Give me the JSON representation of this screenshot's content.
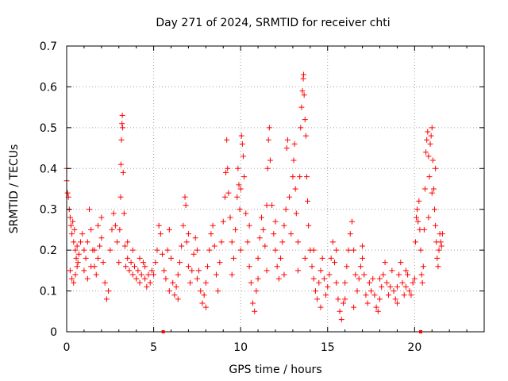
{
  "chart_data": {
    "type": "scatter",
    "title": "Day 271 of 2024, SRMTID for receiver chti",
    "xlabel": "GPS time / hours",
    "ylabel": "SRMTID / TECUs",
    "xlim": [
      0,
      24
    ],
    "ylim": [
      0,
      0.7
    ],
    "x_ticks": [
      0,
      5,
      10,
      15,
      20
    ],
    "x_tick_labels": [
      "0",
      "5",
      "10",
      "15",
      "20"
    ],
    "y_ticks": [
      0,
      0.1,
      0.2,
      0.3,
      0.4,
      0.5,
      0.6,
      0.7
    ],
    "y_tick_labels": [
      "0",
      "0.1",
      "0.2",
      "0.3",
      "0.4",
      "0.5",
      "0.6",
      "0.7"
    ],
    "grid": true,
    "marker": "+",
    "color": "#ff0000",
    "axis_markers_x": [
      5.55,
      20.35
    ],
    "series": [
      {
        "name": "SRMTID",
        "points": [
          [
            0.0,
            0.37
          ],
          [
            0.0,
            0.4
          ],
          [
            0.05,
            0.34
          ],
          [
            0.1,
            0.33
          ],
          [
            0.15,
            0.3
          ],
          [
            0.2,
            0.28
          ],
          [
            0.25,
            0.26
          ],
          [
            0.3,
            0.24
          ],
          [
            0.35,
            0.27
          ],
          [
            0.4,
            0.22
          ],
          [
            0.45,
            0.25
          ],
          [
            0.5,
            0.2
          ],
          [
            0.55,
            0.18
          ],
          [
            0.6,
            0.21
          ],
          [
            0.65,
            0.17
          ],
          [
            0.2,
            0.15
          ],
          [
            0.3,
            0.13
          ],
          [
            0.4,
            0.12
          ],
          [
            0.5,
            0.14
          ],
          [
            0.6,
            0.16
          ],
          [
            0.7,
            0.19
          ],
          [
            0.8,
            0.22
          ],
          [
            0.9,
            0.24
          ],
          [
            1.0,
            0.2
          ],
          [
            1.1,
            0.18
          ],
          [
            1.2,
            0.22
          ],
          [
            1.3,
            0.3
          ],
          [
            1.4,
            0.25
          ],
          [
            1.5,
            0.2
          ],
          [
            1.6,
            0.16
          ],
          [
            1.7,
            0.14
          ],
          [
            1.8,
            0.18
          ],
          [
            1.9,
            0.21
          ],
          [
            2.0,
            0.23
          ],
          [
            2.1,
            0.17
          ],
          [
            2.2,
            0.12
          ],
          [
            2.3,
            0.08
          ],
          [
            2.4,
            0.1
          ],
          [
            2.5,
            0.2
          ],
          [
            2.6,
            0.25
          ],
          [
            2.7,
            0.29
          ],
          [
            2.8,
            0.26
          ],
          [
            2.9,
            0.22
          ],
          [
            1.0,
            0.15
          ],
          [
            1.2,
            0.13
          ],
          [
            1.4,
            0.16
          ],
          [
            1.6,
            0.2
          ],
          [
            1.8,
            0.26
          ],
          [
            2.0,
            0.28
          ],
          [
            3.0,
            0.17
          ],
          [
            3.05,
            0.25
          ],
          [
            3.1,
            0.33
          ],
          [
            3.12,
            0.41
          ],
          [
            3.15,
            0.47
          ],
          [
            3.18,
            0.51
          ],
          [
            3.2,
            0.53
          ],
          [
            3.22,
            0.5
          ],
          [
            3.25,
            0.39
          ],
          [
            3.3,
            0.29
          ],
          [
            3.35,
            0.21
          ],
          [
            3.4,
            0.16
          ],
          [
            3.5,
            0.18
          ],
          [
            3.6,
            0.15
          ],
          [
            3.7,
            0.17
          ],
          [
            3.8,
            0.14
          ],
          [
            3.9,
            0.16
          ],
          [
            4.0,
            0.13
          ],
          [
            4.1,
            0.15
          ],
          [
            4.2,
            0.12
          ],
          [
            4.3,
            0.14
          ],
          [
            4.4,
            0.17
          ],
          [
            4.5,
            0.13
          ],
          [
            4.6,
            0.11
          ],
          [
            4.7,
            0.14
          ],
          [
            4.8,
            0.12
          ],
          [
            4.9,
            0.15
          ],
          [
            5.0,
            0.14
          ],
          [
            4.5,
            0.16
          ],
          [
            4.2,
            0.18
          ],
          [
            3.8,
            0.2
          ],
          [
            3.5,
            0.22
          ],
          [
            5.1,
            0.17
          ],
          [
            5.2,
            0.2
          ],
          [
            5.3,
            0.26
          ],
          [
            5.4,
            0.24
          ],
          [
            5.5,
            0.19
          ],
          [
            5.6,
            0.15
          ],
          [
            5.7,
            0.13
          ],
          [
            5.8,
            0.2
          ],
          [
            5.9,
            0.25
          ],
          [
            6.0,
            0.18
          ],
          [
            6.1,
            0.12
          ],
          [
            6.2,
            0.09
          ],
          [
            6.3,
            0.11
          ],
          [
            6.4,
            0.14
          ],
          [
            6.5,
            0.17
          ],
          [
            6.6,
            0.21
          ],
          [
            6.7,
            0.26
          ],
          [
            6.8,
            0.33
          ],
          [
            6.85,
            0.31
          ],
          [
            6.9,
            0.22
          ],
          [
            7.0,
            0.16
          ],
          [
            7.1,
            0.12
          ],
          [
            7.2,
            0.15
          ],
          [
            7.3,
            0.19
          ],
          [
            7.4,
            0.23
          ],
          [
            7.5,
            0.2
          ],
          [
            7.6,
            0.15
          ],
          [
            7.7,
            0.1
          ],
          [
            7.8,
            0.07
          ],
          [
            7.9,
            0.09
          ],
          [
            8.0,
            0.12
          ],
          [
            8.1,
            0.16
          ],
          [
            8.2,
            0.2
          ],
          [
            8.3,
            0.24
          ],
          [
            8.4,
            0.26
          ],
          [
            8.5,
            0.21
          ],
          [
            8.6,
            0.14
          ],
          [
            8.7,
            0.1
          ],
          [
            8.8,
            0.17
          ],
          [
            8.9,
            0.22
          ],
          [
            5.9,
            0.1
          ],
          [
            6.4,
            0.08
          ],
          [
            7.0,
            0.24
          ],
          [
            7.5,
            0.13
          ],
          [
            8.0,
            0.06
          ],
          [
            9.0,
            0.27
          ],
          [
            9.1,
            0.33
          ],
          [
            9.15,
            0.39
          ],
          [
            9.2,
            0.47
          ],
          [
            9.25,
            0.4
          ],
          [
            9.3,
            0.34
          ],
          [
            9.4,
            0.28
          ],
          [
            9.5,
            0.22
          ],
          [
            9.6,
            0.18
          ],
          [
            9.7,
            0.25
          ],
          [
            9.8,
            0.33
          ],
          [
            9.85,
            0.4
          ],
          [
            9.9,
            0.36
          ],
          [
            9.95,
            0.3
          ],
          [
            10.0,
            0.35
          ],
          [
            10.05,
            0.48
          ],
          [
            10.1,
            0.46
          ],
          [
            10.15,
            0.43
          ],
          [
            10.2,
            0.38
          ],
          [
            10.3,
            0.29
          ],
          [
            10.4,
            0.22
          ],
          [
            10.5,
            0.16
          ],
          [
            10.6,
            0.12
          ],
          [
            10.7,
            0.07
          ],
          [
            10.8,
            0.05
          ],
          [
            10.9,
            0.1
          ],
          [
            11.0,
            0.18
          ],
          [
            11.1,
            0.23
          ],
          [
            11.2,
            0.28
          ],
          [
            11.3,
            0.25
          ],
          [
            11.4,
            0.21
          ],
          [
            11.5,
            0.31
          ],
          [
            11.55,
            0.4
          ],
          [
            11.6,
            0.47
          ],
          [
            11.65,
            0.5
          ],
          [
            11.7,
            0.42
          ],
          [
            11.8,
            0.31
          ],
          [
            11.9,
            0.24
          ],
          [
            12.0,
            0.2
          ],
          [
            12.1,
            0.16
          ],
          [
            12.2,
            0.13
          ],
          [
            12.3,
            0.18
          ],
          [
            12.4,
            0.22
          ],
          [
            12.5,
            0.26
          ],
          [
            12.6,
            0.3
          ],
          [
            12.65,
            0.45
          ],
          [
            12.7,
            0.47
          ],
          [
            12.8,
            0.33
          ],
          [
            12.9,
            0.24
          ],
          [
            9.5,
            0.14
          ],
          [
            10.0,
            0.2
          ],
          [
            10.5,
            0.26
          ],
          [
            11.0,
            0.13
          ],
          [
            11.5,
            0.15
          ],
          [
            12.0,
            0.27
          ],
          [
            12.5,
            0.14
          ],
          [
            13.0,
            0.38
          ],
          [
            13.05,
            0.42
          ],
          [
            13.1,
            0.46
          ],
          [
            13.15,
            0.35
          ],
          [
            13.2,
            0.29
          ],
          [
            13.3,
            0.22
          ],
          [
            13.4,
            0.38
          ],
          [
            13.45,
            0.5
          ],
          [
            13.5,
            0.55
          ],
          [
            13.55,
            0.59
          ],
          [
            13.6,
            0.62
          ],
          [
            13.62,
            0.63
          ],
          [
            13.65,
            0.58
          ],
          [
            13.7,
            0.52
          ],
          [
            13.75,
            0.48
          ],
          [
            13.8,
            0.38
          ],
          [
            13.85,
            0.32
          ],
          [
            13.9,
            0.26
          ],
          [
            14.0,
            0.2
          ],
          [
            14.1,
            0.16
          ],
          [
            14.2,
            0.13
          ],
          [
            14.3,
            0.1
          ],
          [
            14.4,
            0.08
          ],
          [
            14.5,
            0.12
          ],
          [
            14.6,
            0.15
          ],
          [
            14.7,
            0.18
          ],
          [
            14.8,
            0.13
          ],
          [
            14.9,
            0.09
          ],
          [
            13.3,
            0.15
          ],
          [
            13.7,
            0.18
          ],
          [
            14.2,
            0.2
          ],
          [
            14.6,
            0.06
          ],
          [
            15.0,
            0.11
          ],
          [
            15.1,
            0.14
          ],
          [
            15.2,
            0.18
          ],
          [
            15.3,
            0.22
          ],
          [
            15.4,
            0.17
          ],
          [
            15.5,
            0.12
          ],
          [
            15.6,
            0.08
          ],
          [
            15.7,
            0.05
          ],
          [
            15.8,
            0.03
          ],
          [
            15.9,
            0.07
          ],
          [
            16.0,
            0.12
          ],
          [
            16.1,
            0.16
          ],
          [
            16.2,
            0.2
          ],
          [
            16.3,
            0.24
          ],
          [
            16.4,
            0.27
          ],
          [
            16.5,
            0.2
          ],
          [
            16.6,
            0.14
          ],
          [
            16.7,
            0.1
          ],
          [
            16.8,
            0.13
          ],
          [
            16.9,
            0.16
          ],
          [
            17.0,
            0.21
          ],
          [
            17.1,
            0.14
          ],
          [
            17.2,
            0.09
          ],
          [
            17.3,
            0.07
          ],
          [
            17.4,
            0.12
          ],
          [
            17.5,
            0.1
          ],
          [
            17.6,
            0.13
          ],
          [
            17.7,
            0.09
          ],
          [
            17.8,
            0.06
          ],
          [
            17.9,
            0.05
          ],
          [
            18.0,
            0.08
          ],
          [
            18.1,
            0.11
          ],
          [
            18.2,
            0.14
          ],
          [
            18.3,
            0.17
          ],
          [
            18.4,
            0.12
          ],
          [
            18.5,
            0.09
          ],
          [
            18.6,
            0.11
          ],
          [
            18.7,
            0.15
          ],
          [
            18.8,
            0.1
          ],
          [
            18.9,
            0.08
          ],
          [
            19.0,
            0.11
          ],
          [
            19.1,
            0.14
          ],
          [
            19.2,
            0.17
          ],
          [
            19.3,
            0.12
          ],
          [
            19.4,
            0.09
          ],
          [
            19.5,
            0.11
          ],
          [
            19.6,
            0.14
          ],
          [
            19.7,
            0.1
          ],
          [
            19.8,
            0.09
          ],
          [
            19.9,
            0.12
          ],
          [
            15.5,
            0.2
          ],
          [
            16.0,
            0.08
          ],
          [
            16.5,
            0.06
          ],
          [
            17.0,
            0.18
          ],
          [
            18.0,
            0.13
          ],
          [
            19.0,
            0.07
          ],
          [
            19.5,
            0.15
          ],
          [
            20.0,
            0.13
          ],
          [
            20.05,
            0.22
          ],
          [
            20.1,
            0.28
          ],
          [
            20.15,
            0.3
          ],
          [
            20.2,
            0.27
          ],
          [
            20.25,
            0.32
          ],
          [
            20.3,
            0.25
          ],
          [
            20.35,
            0.2
          ],
          [
            20.4,
            0.14
          ],
          [
            20.45,
            0.12
          ],
          [
            20.5,
            0.16
          ],
          [
            20.55,
            0.25
          ],
          [
            20.6,
            0.35
          ],
          [
            20.65,
            0.44
          ],
          [
            20.7,
            0.47
          ],
          [
            20.75,
            0.49
          ],
          [
            20.8,
            0.43
          ],
          [
            20.85,
            0.38
          ],
          [
            20.9,
            0.46
          ],
          [
            20.95,
            0.48
          ],
          [
            21.0,
            0.5
          ],
          [
            21.05,
            0.42
          ],
          [
            21.1,
            0.35
          ],
          [
            21.15,
            0.3
          ],
          [
            21.2,
            0.26
          ],
          [
            21.25,
            0.22
          ],
          [
            21.3,
            0.18
          ],
          [
            21.35,
            0.16
          ],
          [
            21.4,
            0.2
          ],
          [
            21.45,
            0.24
          ],
          [
            21.5,
            0.22
          ],
          [
            21.55,
            0.21
          ],
          [
            21.6,
            0.24
          ],
          [
            20.8,
            0.28
          ],
          [
            21.0,
            0.34
          ],
          [
            21.2,
            0.4
          ]
        ]
      }
    ]
  }
}
